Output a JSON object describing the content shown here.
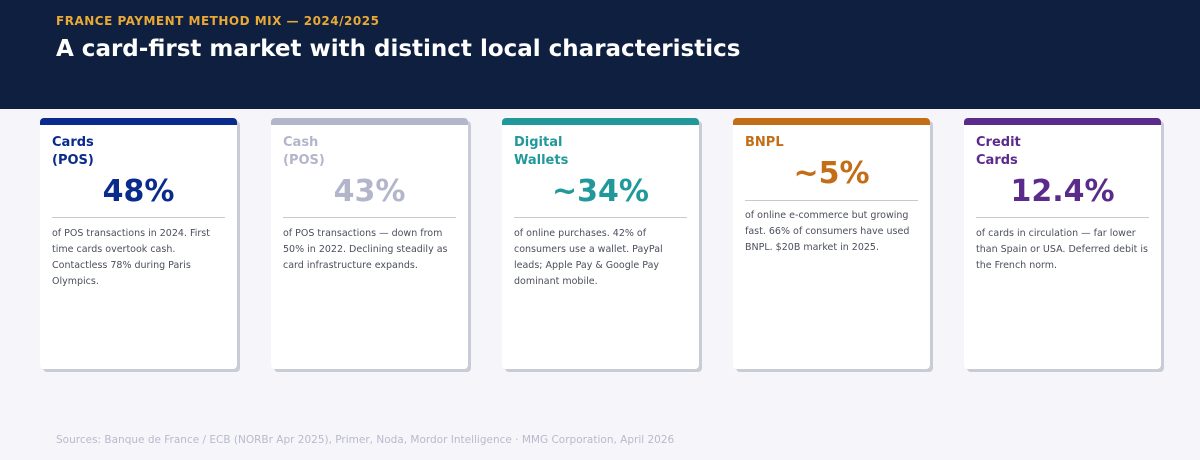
{
  "header": {
    "eyebrow": "FRANCE PAYMENT METHOD MIX — 2024/2025",
    "title": "A card-first market with distinct local characteristics"
  },
  "cards": [
    {
      "label": "Cards\n(POS)",
      "value": "48%",
      "description": "of POS transactions in 2024. First time cards overtook cash. Contactless 78% during Paris Olympics.",
      "color": "#0a2a8c"
    },
    {
      "label": "Cash\n(POS)",
      "value": "43%",
      "description": "of POS transactions — down from 50% in 2022. Declining steadily as card infrastructure expands.",
      "color": "#b3b6cb"
    },
    {
      "label": "Digital\nWallets",
      "value": "~34%",
      "description": "of online purchases. 42% of consumers use a wallet. PayPal leads; Apple Pay & Google Pay dominant mobile.",
      "color": "#21999b"
    },
    {
      "label": "BNPL",
      "value": "~5%",
      "description": "of online e-commerce but growing fast. 66% of consumers have used BNPL. $20B market in 2025.",
      "color": "#c46d17"
    },
    {
      "label": "Credit\nCards",
      "value": "12.4%",
      "description": "of cards in circulation — far lower than Spain or USA. Deferred debit is the French norm.",
      "color": "#5b2b8c"
    }
  ],
  "footer": {
    "sources": "Sources: Banque de France / ECB (NORBr Apr 2025), Primer, Noda, Mordor Intelligence  ·  MMG Corporation, April 2026"
  }
}
